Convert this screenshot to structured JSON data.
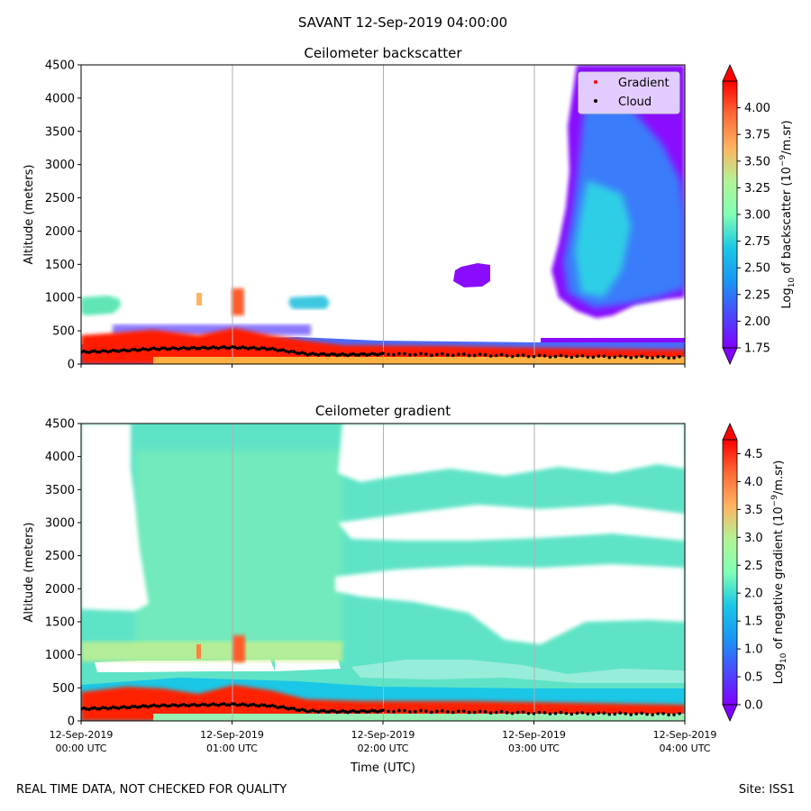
{
  "figure": {
    "suptitle": "SAVANT 12-Sep-2019 04:00:00",
    "footer_left": "REAL TIME DATA, NOT CHECKED FOR QUALITY",
    "footer_right": "Site: ISS1"
  },
  "chart_data": [
    {
      "type": "heatmap",
      "title": "Ceilometer backscatter",
      "xlabel": "",
      "ylabel": "Altitude (meters)",
      "ylim": [
        0,
        4500
      ],
      "yticks": [
        0,
        500,
        1000,
        1500,
        2000,
        2500,
        3000,
        3500,
        4000,
        4500
      ],
      "xlim_hours": [
        0,
        4
      ],
      "xtick_hours": [
        0,
        1,
        2,
        3,
        4
      ],
      "xtick_labels": [],
      "grid": "vertical lines at each hour",
      "colormap": "rainbow",
      "colorbar": {
        "label": "Log10 of backscatter (10^-9/m.sr)",
        "label_main": "Log",
        "label_sub": "10",
        "label_rest": " of backscatter (10",
        "label_sup": "−9",
        "label_end": "/m.sr)",
        "range": [
          1.75,
          4.25
        ],
        "ticks": [
          "1.75",
          "2.00",
          "2.25",
          "2.50",
          "2.75",
          "3.00",
          "3.25",
          "3.50",
          "3.75",
          "4.00"
        ],
        "extend": "both"
      },
      "legend": {
        "placement": "top-right",
        "entries": [
          {
            "label": "Gradient",
            "color": "#ff0000"
          },
          {
            "label": "Cloud",
            "color": "#000000"
          }
        ]
      },
      "regions": [
        {
          "name": "surface layer",
          "hours": [
            0.0,
            4.0
          ],
          "altitude": [
            0,
            300
          ],
          "value_range": [
            2.5,
            4.25
          ]
        },
        {
          "name": "early cloud",
          "hours": [
            0.0,
            0.27
          ],
          "altitude": [
            780,
            1000
          ],
          "value": 2.6
        },
        {
          "name": "cloud near 01:00",
          "hours": [
            0.98,
            1.08
          ],
          "altitude": [
            800,
            1100
          ],
          "value": 3.8
        },
        {
          "name": "cloud near 01:30",
          "hours": [
            1.38,
            1.62
          ],
          "altitude": [
            850,
            1020
          ],
          "value": 2.5
        },
        {
          "name": "patch near 02:40",
          "hours": [
            2.49,
            2.73
          ],
          "altitude": [
            1150,
            1480
          ],
          "value": 1.85
        },
        {
          "name": "plume",
          "hours": [
            3.1,
            4.0
          ],
          "altitude": [
            950,
            4500
          ],
          "value_range": [
            1.75,
            2.7
          ]
        }
      ],
      "cloud_base_m": {
        "hours": [
          0.0,
          0.25,
          0.5,
          0.75,
          1.0,
          1.25,
          1.5,
          1.75,
          2.0,
          2.5,
          3.0,
          3.5,
          4.0
        ],
        "altitude": [
          180,
          200,
          230,
          240,
          250,
          230,
          150,
          140,
          150,
          140,
          120,
          110,
          100
        ]
      }
    },
    {
      "type": "heatmap",
      "title": "Ceilometer gradient",
      "xlabel": "Time (UTC)",
      "ylabel": "Altitude (meters)",
      "ylim": [
        0,
        4500
      ],
      "yticks": [
        0,
        500,
        1000,
        1500,
        2000,
        2500,
        3000,
        3500,
        4000,
        4500
      ],
      "xlim_hours": [
        0,
        4
      ],
      "xtick_hours": [
        0,
        1,
        2,
        3,
        4
      ],
      "xtick_labels": [
        [
          "12-Sep-2019",
          "00:00 UTC"
        ],
        [
          "12-Sep-2019",
          "01:00 UTC"
        ],
        [
          "12-Sep-2019",
          "02:00 UTC"
        ],
        [
          "12-Sep-2019",
          "03:00 UTC"
        ],
        [
          "12-Sep-2019",
          "04:00 UTC"
        ]
      ],
      "grid": "vertical lines at each hour",
      "colormap": "rainbow",
      "colorbar": {
        "label_main": "Log",
        "label_sub": "10",
        "label_rest": " of negative gradient (10",
        "label_sup": "−9",
        "label_end": "/m.sr)",
        "range": [
          0.0,
          4.75
        ],
        "ticks": [
          "0.0",
          "0.5",
          "1.0",
          "1.5",
          "2.0",
          "2.5",
          "3.0",
          "3.5",
          "4.0",
          "4.5"
        ],
        "extend": "both"
      },
      "regions": [
        {
          "name": "surface layer",
          "hours": [
            0.0,
            4.0
          ],
          "altitude": [
            0,
            400
          ],
          "value_range": [
            2.0,
            4.75
          ]
        },
        {
          "name": "broad layer",
          "hours": [
            0.0,
            4.0
          ],
          "altitude": [
            400,
            4500
          ],
          "value_range": [
            1.2,
            2.0
          ]
        },
        {
          "name": "gap",
          "hours": [
            0.0,
            0.35
          ],
          "altitude": [
            1750,
            4500
          ],
          "value": null
        },
        {
          "name": "gap",
          "hours": [
            1.75,
            4.0
          ],
          "altitude": [
            1200,
            2050
          ],
          "value": null
        },
        {
          "name": "gap",
          "hours": [
            1.7,
            4.0
          ],
          "altitude": [
            3350,
            4500
          ],
          "value": null
        }
      ],
      "cloud_base_m": {
        "hours": [
          0.0,
          0.25,
          0.5,
          0.75,
          1.0,
          1.25,
          1.5,
          1.75,
          2.0,
          2.5,
          3.0,
          3.5,
          4.0
        ],
        "altitude": [
          180,
          200,
          230,
          240,
          250,
          230,
          150,
          140,
          150,
          140,
          120,
          110,
          100
        ]
      }
    }
  ]
}
